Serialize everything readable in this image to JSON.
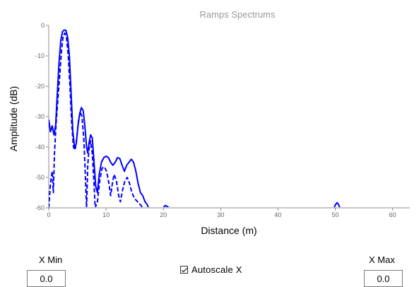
{
  "chart_data": {
    "type": "line",
    "title": "Ramps Spectrums",
    "xlabel": "Distance (m)",
    "ylabel": "Amplitude (dB)",
    "xlim": [
      0,
      63
    ],
    "ylim": [
      -60,
      0
    ],
    "x_ticks": [
      "0",
      "10",
      "20",
      "30",
      "40",
      "50",
      "60"
    ],
    "y_ticks": [
      "0",
      "-10",
      "-20",
      "-30",
      "-40",
      "-50",
      "-60"
    ],
    "colors": {
      "title": "#999999",
      "series": "#0000ff",
      "axis": "#8c8c8c",
      "tick_label": "#666666"
    },
    "series": [
      {
        "style": "solid",
        "points": [
          [
            0.0,
            -31
          ],
          [
            0.3,
            -35
          ],
          [
            0.6,
            -33
          ],
          [
            0.9,
            -36
          ],
          [
            1.2,
            -33
          ],
          [
            1.5,
            -22
          ],
          [
            1.8,
            -12
          ],
          [
            2.1,
            -5
          ],
          [
            2.4,
            -2
          ],
          [
            2.7,
            -1.5
          ],
          [
            3.0,
            -1.6
          ],
          [
            3.3,
            -4
          ],
          [
            3.6,
            -10
          ],
          [
            3.9,
            -22
          ],
          [
            4.2,
            -35
          ],
          [
            4.5,
            -40
          ],
          [
            4.8,
            -39
          ],
          [
            5.1,
            -33
          ],
          [
            5.4,
            -29
          ],
          [
            5.7,
            -27
          ],
          [
            6.0,
            -28
          ],
          [
            6.3,
            -33
          ],
          [
            6.6,
            -40
          ],
          [
            6.8,
            -42
          ],
          [
            7.0,
            -39
          ],
          [
            7.3,
            -36
          ],
          [
            7.6,
            -37
          ],
          [
            7.9,
            -45
          ],
          [
            8.2,
            -53
          ],
          [
            8.5,
            -55
          ],
          [
            8.8,
            -49
          ],
          [
            9.2,
            -45
          ],
          [
            9.6,
            -43.5
          ],
          [
            10.0,
            -43
          ],
          [
            10.4,
            -43.5
          ],
          [
            10.8,
            -45
          ],
          [
            11.2,
            -46
          ],
          [
            11.6,
            -45
          ],
          [
            12.0,
            -43.5
          ],
          [
            12.4,
            -43.8
          ],
          [
            12.8,
            -46
          ],
          [
            13.2,
            -48
          ],
          [
            13.6,
            -46
          ],
          [
            14.0,
            -45
          ],
          [
            14.4,
            -44
          ],
          [
            14.8,
            -45
          ],
          [
            15.2,
            -48
          ],
          [
            15.6,
            -52
          ],
          [
            16.0,
            -55
          ],
          [
            16.4,
            -56
          ],
          [
            16.8,
            -58
          ],
          [
            17.2,
            -59
          ],
          [
            17.4,
            -60
          ]
        ]
      },
      {
        "style": "dashed",
        "points": [
          [
            0.0,
            -60
          ],
          [
            0.3,
            -52
          ],
          [
            0.6,
            -48
          ],
          [
            0.8,
            -55
          ],
          [
            1.0,
            -42
          ],
          [
            1.3,
            -32
          ],
          [
            1.6,
            -24
          ],
          [
            1.9,
            -17
          ],
          [
            2.2,
            -9
          ],
          [
            2.5,
            -3.5
          ],
          [
            2.8,
            -2.5
          ],
          [
            3.1,
            -4
          ],
          [
            3.4,
            -10
          ],
          [
            3.7,
            -20
          ],
          [
            4.0,
            -32
          ],
          [
            4.3,
            -40
          ],
          [
            4.6,
            -41
          ],
          [
            4.9,
            -37
          ],
          [
            5.2,
            -31
          ],
          [
            5.5,
            -28.5
          ],
          [
            5.8,
            -30
          ],
          [
            6.1,
            -37
          ],
          [
            6.3,
            -45
          ],
          [
            6.5,
            -55
          ],
          [
            6.6,
            -60
          ],
          [
            6.8,
            -46
          ],
          [
            7.0,
            -41
          ],
          [
            7.3,
            -38
          ],
          [
            7.6,
            -42
          ],
          [
            7.9,
            -52
          ],
          [
            8.1,
            -60
          ],
          [
            8.5,
            -58
          ],
          [
            8.9,
            -51
          ],
          [
            9.3,
            -47
          ],
          [
            9.7,
            -46.5
          ],
          [
            10.1,
            -48
          ],
          [
            10.5,
            -52
          ],
          [
            10.8,
            -56
          ],
          [
            11.1,
            -52
          ],
          [
            11.4,
            -49
          ],
          [
            11.8,
            -51
          ],
          [
            12.2,
            -56
          ],
          [
            12.5,
            -58
          ],
          [
            12.9,
            -54
          ],
          [
            13.3,
            -51
          ],
          [
            13.7,
            -50
          ],
          [
            14.1,
            -52
          ],
          [
            14.5,
            -55
          ],
          [
            15.0,
            -57
          ],
          [
            15.5,
            -58
          ],
          [
            16.0,
            -59
          ],
          [
            16.4,
            -60
          ]
        ]
      },
      {
        "style": "solid",
        "points": [
          [
            20.0,
            -60
          ],
          [
            20.3,
            -59.2
          ],
          [
            20.7,
            -59.6
          ],
          [
            21.0,
            -60
          ]
        ]
      },
      {
        "style": "solid",
        "points": [
          [
            49.8,
            -60
          ],
          [
            50.0,
            -59
          ],
          [
            50.3,
            -58.3
          ],
          [
            50.6,
            -59
          ],
          [
            50.8,
            -60
          ]
        ]
      }
    ]
  },
  "controls": {
    "xmin": {
      "label": "X Min",
      "value": "0.0"
    },
    "xmax": {
      "label": "X Max",
      "value": "0.0"
    },
    "autoscale": {
      "label": "Autoscale X",
      "checked": true
    }
  }
}
